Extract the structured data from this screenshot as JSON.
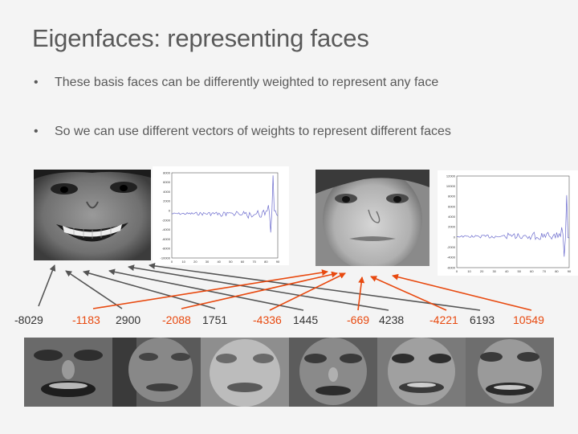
{
  "slide": {
    "title": "Eigenfaces: representing faces",
    "bullets": [
      {
        "marker": "•",
        "text": "These basis faces can be differently weighted to represent any face"
      },
      {
        "marker": "•",
        "text": "So we can use different vectors of weights to represent different faces"
      }
    ]
  },
  "colors": {
    "title_text": "#595959",
    "weight_positive": "#333333",
    "weight_negative": "#e8490f",
    "arrow_gray": "#555555",
    "arrow_red": "#e8490f",
    "plot_line": "#6a6acd"
  },
  "face1": {
    "weights": [
      -8029,
      2900,
      1751,
      1445,
      4238,
      6193
    ],
    "weight_labels": [
      "-8029",
      "2900",
      "1751",
      "1445",
      "4238",
      "6193"
    ],
    "plot_y_ticks": [
      "8000",
      "6000",
      "4000",
      "2000",
      "0",
      "-2000",
      "-4000",
      "-6000",
      "-8000",
      "-10000"
    ],
    "plot_x_ticks": [
      "0",
      "10",
      "20",
      "30",
      "40",
      "50",
      "60",
      "70",
      "80",
      "90"
    ]
  },
  "face2": {
    "weights": [
      -1183,
      -2088,
      -4336,
      -669,
      -4221,
      10549
    ],
    "weight_labels": [
      "-1183",
      "-2088",
      "-4336",
      "-669",
      "-4221",
      "10549"
    ],
    "plot_y_ticks": [
      "12000",
      "10000",
      "8000",
      "6000",
      "4000",
      "2000",
      "0",
      "-2000",
      "-4000",
      "-6000"
    ],
    "plot_x_ticks": [
      "0",
      "10",
      "20",
      "30",
      "40",
      "50",
      "60",
      "70",
      "80",
      "90"
    ]
  },
  "eigenfaces": [
    "eigenface-1",
    "eigenface-2",
    "eigenface-3",
    "eigenface-4",
    "eigenface-5",
    "eigenface-6"
  ]
}
